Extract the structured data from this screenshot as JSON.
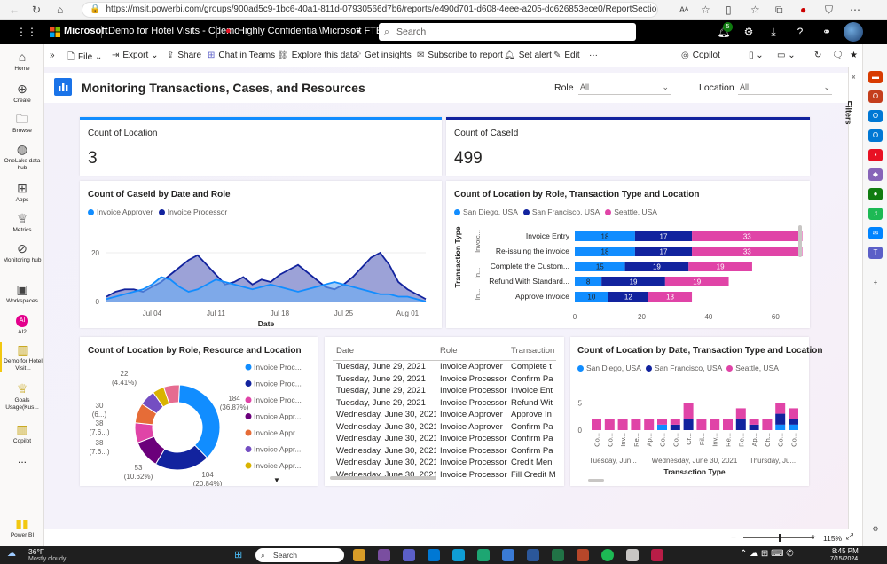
{
  "browser": {
    "url": "https://msit.powerbi.com/groups/900ad5c9-1bc6-40a1-811d-07930566d7b6/reports/e490d701-d608-4eee-a205-dc626853ece0/ReportSection8f076ff23c1026...",
    "reader_label": "Aᴬ"
  },
  "header": {
    "brand": "Microsoft",
    "report_name": "Demo for Hotel Visits - Cdemo",
    "sensitivity": "Highly Confidential\\Microsoft FTE",
    "search_placeholder": "Search",
    "notification_count": "5"
  },
  "leftnav": [
    {
      "label": "Home",
      "icon": "home-icon"
    },
    {
      "label": "Create",
      "icon": "plus-circle-icon"
    },
    {
      "label": "Browse",
      "icon": "folder-icon"
    },
    {
      "label": "OneLake data hub",
      "icon": "onelake-icon"
    },
    {
      "label": "Apps",
      "icon": "apps-icon"
    },
    {
      "label": "Metrics",
      "icon": "trophy-icon"
    },
    {
      "label": "Monitoring hub",
      "icon": "monitor-icon"
    },
    {
      "label": "Workspaces",
      "icon": "workspaces-icon"
    },
    {
      "label": "AI2",
      "icon": "workspace-avatar-icon"
    },
    {
      "label": "Demo for Hotel Visit...",
      "icon": "report-icon"
    },
    {
      "label": "Goals Usage(Kus...",
      "icon": "goals-icon"
    },
    {
      "label": "Copilot",
      "icon": "copilot-icon"
    },
    {
      "label": "...",
      "icon": "more-icon"
    },
    {
      "label": "Power BI",
      "icon": "powerbi-logo-icon"
    }
  ],
  "toolbar": {
    "file": "File",
    "export": "Export",
    "share": "Share",
    "chat": "Chat in Teams",
    "explore": "Explore this data",
    "insights": "Get insights",
    "subscribe": "Subscribe to report",
    "alert": "Set alert",
    "edit": "Edit",
    "more": "···",
    "copilot": "Copilot"
  },
  "report": {
    "title": "Monitoring Transactions, Cases, and Resources",
    "role_label": "Role",
    "role_value": "All",
    "location_label": "Location",
    "location_value": "All",
    "filters_label": "Filters"
  },
  "kpi1": {
    "title": "Count of Location",
    "value": "3"
  },
  "kpi2": {
    "title": "Count of CaseId",
    "value": "499"
  },
  "colors": {
    "light_blue": "#118dff",
    "dark_blue": "#12239e",
    "pink": "#e044a7",
    "orange": "#e66c37",
    "purple": "#6b007b",
    "yellow": "#d9b300",
    "accent": "#744ec2"
  },
  "chart_data": [
    {
      "type": "area",
      "title": "Count of CaseId by Date and Role",
      "xlabel": "Date",
      "ylabel": "",
      "x_ticks": [
        "Jul 04",
        "Jul 11",
        "Jul 18",
        "Jul 25",
        "Aug 01"
      ],
      "y_ticks": [
        "0",
        "20"
      ],
      "ylim": [
        0,
        32
      ],
      "legend_position": "top-left",
      "x": [
        "Jun 29",
        "Jun 30",
        "Jul 01",
        "Jul 02",
        "Jul 03",
        "Jul 04",
        "Jul 05",
        "Jul 06",
        "Jul 07",
        "Jul 08",
        "Jul 09",
        "Jul 10",
        "Jul 11",
        "Jul 12",
        "Jul 13",
        "Jul 14",
        "Jul 15",
        "Jul 16",
        "Jul 17",
        "Jul 18",
        "Jul 19",
        "Jul 20",
        "Jul 21",
        "Jul 22",
        "Jul 23",
        "Jul 24",
        "Jul 25",
        "Jul 26",
        "Jul 27",
        "Jul 28",
        "Jul 29",
        "Jul 30",
        "Jul 31",
        "Aug 01",
        "Aug 02",
        "Aug 03"
      ],
      "series": [
        {
          "name": "Invoice Approver",
          "values": [
            1,
            2,
            3,
            4,
            5,
            7,
            10,
            9,
            6,
            4,
            5,
            7,
            9,
            8,
            7,
            6,
            5,
            6,
            7,
            6,
            5,
            4,
            5,
            6,
            7,
            8,
            7,
            6,
            5,
            4,
            3,
            3,
            2,
            2,
            1,
            0
          ]
        },
        {
          "name": "Invoice Processor",
          "values": [
            2,
            4,
            5,
            5,
            4,
            6,
            8,
            11,
            14,
            17,
            19,
            15,
            11,
            7,
            8,
            10,
            7,
            9,
            8,
            11,
            13,
            15,
            12,
            9,
            6,
            5,
            7,
            10,
            14,
            18,
            20,
            15,
            8,
            5,
            3,
            1
          ]
        }
      ]
    },
    {
      "type": "bar",
      "orientation": "horizontal",
      "stacked": true,
      "title": "Count of Location by Role, Transaction Type and Location",
      "ylabel": "Transaction Type",
      "group_labels": [
        "Invoic...",
        "In...",
        "In..."
      ],
      "categories": [
        "Invoice Entry",
        "Re-issuing the invoice",
        "Complete the Custom...",
        "Refund With Standard...",
        "Approve Invoice"
      ],
      "x_ticks": [
        "0",
        "20",
        "40",
        "60"
      ],
      "xlim": [
        0,
        66
      ],
      "legend_position": "top-left",
      "series": [
        {
          "name": "San Diego, USA",
          "values": [
            18,
            18,
            15,
            8,
            10
          ]
        },
        {
          "name": "San Francisco, USA",
          "values": [
            17,
            17,
            19,
            19,
            12
          ]
        },
        {
          "name": "Seattle, USA",
          "values": [
            33,
            33,
            19,
            19,
            13
          ]
        }
      ]
    },
    {
      "type": "pie",
      "donut": true,
      "title": "Count of Location by Role, Resource and Location",
      "legend_position": "right",
      "legend": [
        "Invoice Proc...",
        "Invoice Proc...",
        "Invoice Proc...",
        "Invoice Appr...",
        "Invoice Appr...",
        "Invoice Appr...",
        "Invoice Appr..."
      ],
      "slices": [
        {
          "value": 184,
          "label": "184 (36.87%)"
        },
        {
          "value": 104,
          "label": "104 (20.84%)"
        },
        {
          "value": 53,
          "label": "53 (10.62%)"
        },
        {
          "value": 38,
          "label": "38 (7.6...)"
        },
        {
          "value": 38,
          "label": "38 (7.6...)"
        },
        {
          "value": 30,
          "label": "30 (6...)"
        },
        {
          "value": 22,
          "label": "22 (4.41%)"
        },
        {
          "value": 30,
          "label": ""
        }
      ]
    },
    {
      "type": "table",
      "columns": [
        "Date",
        "Role",
        "Transaction"
      ],
      "rows": [
        [
          "Tuesday, June 29, 2021",
          "Invoice Approver",
          "Complete t"
        ],
        [
          "Tuesday, June 29, 2021",
          "Invoice Processor",
          "Confirm Pa"
        ],
        [
          "Tuesday, June 29, 2021",
          "Invoice Processor",
          "Invoice Ent"
        ],
        [
          "Tuesday, June 29, 2021",
          "Invoice Processor",
          "Refund Wit"
        ],
        [
          "Wednesday, June 30, 2021",
          "Invoice Approver",
          "Approve In"
        ],
        [
          "Wednesday, June 30, 2021",
          "Invoice Approver",
          "Confirm Pa"
        ],
        [
          "Wednesday, June 30, 2021",
          "Invoice Processor",
          "Confirm Pa"
        ],
        [
          "Wednesday, June 30, 2021",
          "Invoice Processor",
          "Confirm Pa"
        ],
        [
          "Wednesday, June 30, 2021",
          "Invoice Processor",
          "Credit Men"
        ],
        [
          "Wednesday, June 30, 2021",
          "Invoice Processor",
          "Fill Credit M"
        ]
      ]
    },
    {
      "type": "bar",
      "stacked": true,
      "title": "Count of Location by Date, Transaction Type and Location",
      "xlabel": "Transaction Type",
      "legend_position": "top-left",
      "y_ticks": [
        "0",
        "5"
      ],
      "ylim": [
        0,
        7
      ],
      "categories": [
        "Co...",
        "Co...",
        "Inv...",
        "Re...",
        "Ap...",
        "Co...",
        "Co...",
        "Cr...",
        "Fil...",
        "Inv...",
        "Re...",
        "Re...",
        "Ap...",
        "Ch...",
        "Co...",
        "Co..."
      ],
      "date_labels": [
        "Tuesday, Jun...",
        "Wednesday, June 30, 2021",
        "Thursday, Ju..."
      ],
      "series": [
        {
          "name": "San Diego, USA",
          "values": [
            0,
            0,
            0,
            0,
            0,
            1,
            0,
            0,
            0,
            0,
            0,
            0,
            0,
            0,
            1,
            1
          ]
        },
        {
          "name": "San Francisco, USA",
          "values": [
            0,
            0,
            0,
            0,
            0,
            0,
            1,
            2,
            0,
            0,
            0,
            2,
            1,
            0,
            2,
            1
          ]
        },
        {
          "name": "Seattle, USA",
          "values": [
            2,
            2,
            2,
            2,
            2,
            1,
            1,
            3,
            2,
            2,
            2,
            2,
            1,
            2,
            2,
            2
          ]
        }
      ]
    }
  ],
  "status": {
    "zoom": "115%"
  },
  "taskbar": {
    "temp": "36°F",
    "weather": "Mostly cloudy",
    "search": "Search",
    "time": "8:45 PM",
    "date": "7/15/2024"
  }
}
